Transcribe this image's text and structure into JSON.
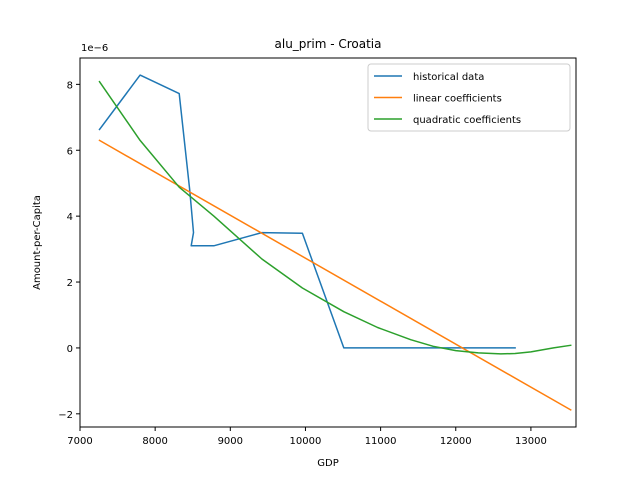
{
  "chart_data": {
    "type": "line",
    "title": "alu_prim - Croatia",
    "xlabel": "GDP",
    "ylabel": "Amount-per-Capita",
    "y_offset_label": "1e−6",
    "xlim": [
      7000,
      13600
    ],
    "ylim": [
      -2.4,
      8.8
    ],
    "x_ticks": [
      7000,
      8000,
      9000,
      10000,
      11000,
      12000,
      13000
    ],
    "x_tick_labels": [
      "7000",
      "8000",
      "9000",
      "10000",
      "11000",
      "12000",
      "13000"
    ],
    "y_ticks": [
      -2,
      0,
      2,
      4,
      6,
      8
    ],
    "y_tick_labels": [
      "−2",
      "0",
      "2",
      "4",
      "6",
      "8"
    ],
    "grid": false,
    "legend_position": "top-right",
    "series": [
      {
        "name": "historical data",
        "color": "#1f77b4",
        "x": [
          7260,
          7800,
          8320,
          8460,
          8510,
          8480,
          8780,
          9420,
          9960,
          10510,
          11100,
          11600,
          12100,
          12790
        ],
        "y": [
          6.63,
          8.28,
          7.72,
          4.8,
          3.5,
          3.1,
          3.1,
          3.5,
          3.48,
          0.0,
          0.0,
          0.0,
          0.0,
          0.0
        ]
      },
      {
        "name": "linear coefficients",
        "color": "#ff7f0e",
        "x": [
          7260,
          13530
        ],
        "y": [
          6.3,
          -1.88
        ]
      },
      {
        "name": "quadratic coefficients",
        "color": "#2ca02c",
        "x": [
          7260,
          7800,
          8320,
          8780,
          9420,
          9960,
          10510,
          10960,
          11400,
          11700,
          12000,
          12300,
          12600,
          12790,
          13000,
          13300,
          13530
        ],
        "y": [
          8.08,
          6.3,
          4.88,
          4.0,
          2.7,
          1.82,
          1.1,
          0.62,
          0.25,
          0.05,
          -0.08,
          -0.15,
          -0.18,
          -0.17,
          -0.12,
          0.0,
          0.08
        ]
      }
    ]
  }
}
